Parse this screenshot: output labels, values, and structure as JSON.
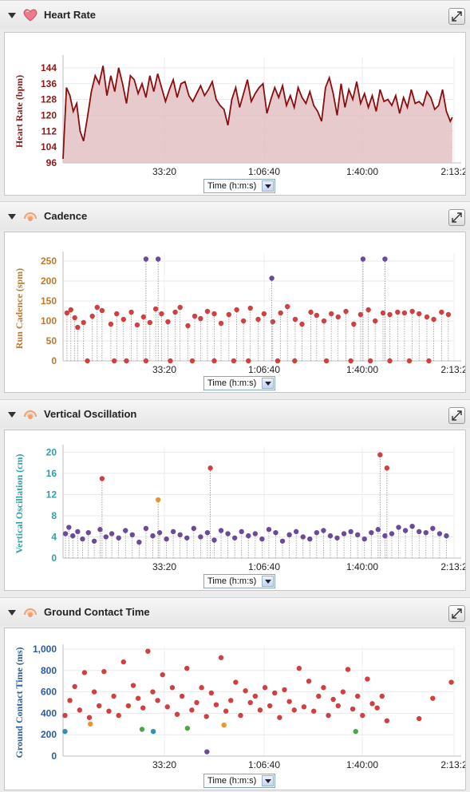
{
  "x_axis_selector_label": "Time (h:m:s)",
  "x_ticks": [
    "33:20",
    "1:06:40",
    "1:40:00",
    "2:13:2"
  ],
  "colors": {
    "heart_line": "#8b0d0d",
    "heart_fill": "#e3c1c3",
    "red": "#d04040",
    "orange": "#e8952e",
    "teal": "#2f8fb5",
    "green": "#48a848",
    "purple": "#6c4a9a",
    "cadence_axis": "#c2762a",
    "vo_axis": "#2aa3a6",
    "gct_axis": "#2a5aa0",
    "heart_axis": "#8b1a1a"
  },
  "sections": {
    "heart": {
      "title": "Heart Rate",
      "icon": "heart-icon",
      "ylabel": "Heart Rate (bpm)",
      "yticks": [
        "144",
        "136",
        "128",
        "120",
        "112",
        "104",
        "96"
      ]
    },
    "cadence": {
      "title": "Cadence",
      "icon": "runner-icon",
      "ylabel": "Run Cadence (spm)",
      "yticks": [
        "250",
        "200",
        "150",
        "100",
        "50",
        "0"
      ]
    },
    "vo": {
      "title": "Vertical Oscillation",
      "icon": "runner-icon",
      "ylabel": "Vertical Oscillation (cm)",
      "yticks": [
        "20",
        "16",
        "12",
        "8",
        "4",
        "0"
      ]
    },
    "gct": {
      "title": "Ground Contact Time",
      "icon": "runner-icon",
      "ylabel": "Ground Contact Time (ms)",
      "yticks": [
        "1,000",
        "800",
        "600",
        "400",
        "200",
        "0"
      ]
    }
  },
  "chart_data": [
    {
      "type": "area",
      "ylabel": "Heart Rate (bpm)",
      "ylim": [
        96,
        148
      ],
      "x_unit": "seconds",
      "xlim": [
        0,
        8000
      ],
      "x": [
        0,
        70,
        140,
        210,
        280,
        350,
        420,
        500,
        580,
        660,
        740,
        820,
        900,
        980,
        1060,
        1140,
        1220,
        1300,
        1380,
        1460,
        1540,
        1620,
        1700,
        1780,
        1860,
        1940,
        2020,
        2100,
        2180,
        2260,
        2340,
        2420,
        2500,
        2580,
        2660,
        2740,
        2820,
        2900,
        2980,
        3060,
        3140,
        3220,
        3300,
        3380,
        3460,
        3540,
        3620,
        3700,
        3780,
        3860,
        3940,
        4020,
        4100,
        4180,
        4260,
        4340,
        4420,
        4500,
        4580,
        4660,
        4740,
        4820,
        4900,
        4980,
        5060,
        5140,
        5220,
        5300,
        5380,
        5460,
        5540,
        5620,
        5700,
        5780,
        5860,
        5940,
        6020,
        6100,
        6180,
        6260,
        6340,
        6420,
        6500,
        6580,
        6660,
        6740,
        6820,
        6900,
        6980,
        7060,
        7140,
        7220,
        7300,
        7380,
        7460,
        7540,
        7620,
        7700,
        7780,
        7860,
        7940,
        7980
      ],
      "y": [
        98,
        134,
        130,
        122,
        126,
        112,
        107,
        119,
        132,
        140,
        136,
        145,
        130,
        140,
        132,
        144,
        136,
        126,
        140,
        138,
        131,
        136,
        129,
        140,
        132,
        141,
        134,
        127,
        133,
        138,
        129,
        136,
        137,
        130,
        127,
        131,
        135,
        130,
        133,
        137,
        128,
        125,
        123,
        115,
        128,
        134,
        124,
        131,
        138,
        127,
        131,
        134,
        136,
        121,
        128,
        134,
        129,
        135,
        125,
        130,
        124,
        134,
        129,
        126,
        132,
        125,
        122,
        117,
        134,
        139,
        131,
        120,
        136,
        124,
        133,
        128,
        137,
        126,
        131,
        124,
        130,
        122,
        133,
        127,
        128,
        125,
        130,
        121,
        129,
        124,
        133,
        126,
        127,
        125,
        132,
        129,
        123,
        125,
        133,
        122,
        117,
        119
      ]
    },
    {
      "type": "scatter",
      "ylabel": "Run Cadence (spm)",
      "ylim": [
        0,
        262
      ],
      "series": [
        {
          "name": "",
          "x_unit": "seconds",
          "x": [
            80,
            160,
            240,
            300,
            420,
            600,
            700,
            800,
            980,
            1100,
            1240,
            1400,
            1520,
            1650,
            1780,
            1900,
            2020,
            2150,
            2300,
            2400,
            2560,
            2700,
            2820,
            2960,
            3100,
            3240,
            3400,
            3560,
            3700,
            3840,
            4000,
            4120,
            4300,
            4460,
            4600,
            4760,
            4900,
            5080,
            5200,
            5350,
            5500,
            5640,
            5800,
            5960,
            6100,
            6260,
            6400,
            6560,
            6700,
            6860,
            7000,
            7160,
            7300,
            7460,
            7600,
            7760,
            7900
          ],
          "y": [
            120,
            128,
            108,
            84,
            96,
            112,
            134,
            126,
            92,
            118,
            104,
            122,
            90,
            110,
            96,
            130,
            118,
            98,
            122,
            134,
            88,
            112,
            106,
            124,
            118,
            94,
            116,
            128,
            100,
            132,
            104,
            118,
            98,
            120,
            136,
            104,
            92,
            122,
            114,
            100,
            118,
            110,
            124,
            92,
            116,
            128,
            100,
            120,
            116,
            122,
            120,
            124,
            118,
            110,
            104,
            122,
            116
          ]
        },
        {
          "name": "",
          "x": [
            500,
            1050,
            1300,
            1700,
            2200,
            2650,
            3100,
            3500,
            3800,
            4400,
            4750,
            5400,
            5900,
            6300,
            6700,
            7100,
            7500
          ],
          "y": [
            0,
            0,
            0,
            0,
            0,
            0,
            0,
            0,
            0,
            0,
            0,
            0,
            0,
            0,
            0,
            0,
            0
          ]
        }
      ],
      "highlights": [
        {
          "x": 1700,
          "y": 255
        },
        {
          "x": 1950,
          "y": 255
        },
        {
          "x": 6150,
          "y": 255
        },
        {
          "x": 6600,
          "y": 255
        },
        {
          "x": 4280,
          "y": 207
        }
      ]
    },
    {
      "type": "scatter",
      "ylabel": "Vertical Oscillation (cm)",
      "ylim": [
        0,
        20.5
      ],
      "series": [
        {
          "name": "",
          "x_unit": "seconds",
          "x": [
            50,
            120,
            200,
            300,
            400,
            520,
            640,
            760,
            880,
            1000,
            1140,
            1280,
            1420,
            1560,
            1700,
            1840,
            1980,
            2120,
            2260,
            2400,
            2540,
            2680,
            2820,
            2960,
            3100,
            3240,
            3380,
            3520,
            3660,
            3800,
            3940,
            4080,
            4220,
            4360,
            4500,
            4640,
            4780,
            4920,
            5060,
            5200,
            5340,
            5480,
            5620,
            5760,
            5900,
            6040,
            6180,
            6320,
            6460,
            6600,
            6740,
            6880,
            7020,
            7160,
            7300,
            7440,
            7580,
            7720,
            7860
          ],
          "y": [
            4.6,
            5.8,
            4.2,
            5.0,
            3.6,
            4.8,
            3.2,
            5.4,
            4.0,
            4.6,
            3.8,
            5.2,
            4.4,
            3.0,
            5.6,
            4.2,
            4.8,
            3.6,
            5.0,
            4.4,
            3.8,
            5.6,
            4.0,
            4.8,
            3.4,
            5.2,
            4.6,
            3.8,
            5.0,
            4.2,
            4.6,
            3.6,
            5.4,
            4.8,
            3.2,
            4.4,
            5.0,
            4.0,
            3.6,
            4.8,
            5.2,
            4.2,
            3.8,
            4.6,
            5.0,
            4.4,
            3.6,
            4.8,
            5.4,
            4.2,
            4.6,
            5.8,
            5.2,
            6.0,
            5.0,
            4.8,
            5.6,
            4.6,
            4.2
          ]
        }
      ],
      "highlights": [
        {
          "x": 800,
          "y": 15
        },
        {
          "x": 1950,
          "y": 11
        },
        {
          "x": 3020,
          "y": 17
        },
        {
          "x": 6500,
          "y": 19.5
        },
        {
          "x": 6640,
          "y": 17
        }
      ]
    },
    {
      "type": "scatter",
      "ylabel": "Ground Contact Time (ms)",
      "ylim": [
        0,
        1000
      ],
      "series": [
        {
          "name": "",
          "x_unit": "seconds",
          "x": [
            40,
            140,
            240,
            340,
            440,
            540,
            640,
            740,
            840,
            940,
            1040,
            1140,
            1240,
            1340,
            1440,
            1540,
            1640,
            1740,
            1840,
            1940,
            2040,
            2140,
            2240,
            2340,
            2440,
            2540,
            2640,
            2740,
            2840,
            2940,
            3040,
            3140,
            3240,
            3340,
            3440,
            3540,
            3640,
            3740,
            3840,
            3940,
            4040,
            4140,
            4240,
            4340,
            4440,
            4540,
            4640,
            4740,
            4840,
            4940,
            5040,
            5140,
            5240,
            5340,
            5440,
            5540,
            5640,
            5740,
            5840,
            5940,
            6040,
            6140,
            6240,
            6340,
            6440,
            6540,
            6640,
            7300,
            7580,
            7960
          ],
          "y": [
            380,
            520,
            650,
            430,
            780,
            360,
            600,
            470,
            790,
            420,
            560,
            380,
            880,
            470,
            660,
            540,
            450,
            980,
            600,
            520,
            760,
            460,
            640,
            390,
            560,
            820,
            430,
            500,
            640,
            370,
            590,
            480,
            920,
            420,
            520,
            690,
            380,
            610,
            500,
            560,
            430,
            640,
            470,
            590,
            360,
            620,
            510,
            430,
            820,
            460,
            700,
            420,
            560,
            640,
            380,
            530,
            470,
            600,
            810,
            440,
            560,
            380,
            720,
            490,
            450,
            560,
            330,
            350,
            540,
            690
          ]
        }
      ],
      "highlights": [
        {
          "x": 40,
          "y": 230
        },
        {
          "x": 560,
          "y": 300
        },
        {
          "x": 1620,
          "y": 250
        },
        {
          "x": 1850,
          "y": 230
        },
        {
          "x": 2550,
          "y": 260
        },
        {
          "x": 2950,
          "y": 40
        },
        {
          "x": 3300,
          "y": 290
        },
        {
          "x": 6000,
          "y": 230
        }
      ]
    }
  ]
}
